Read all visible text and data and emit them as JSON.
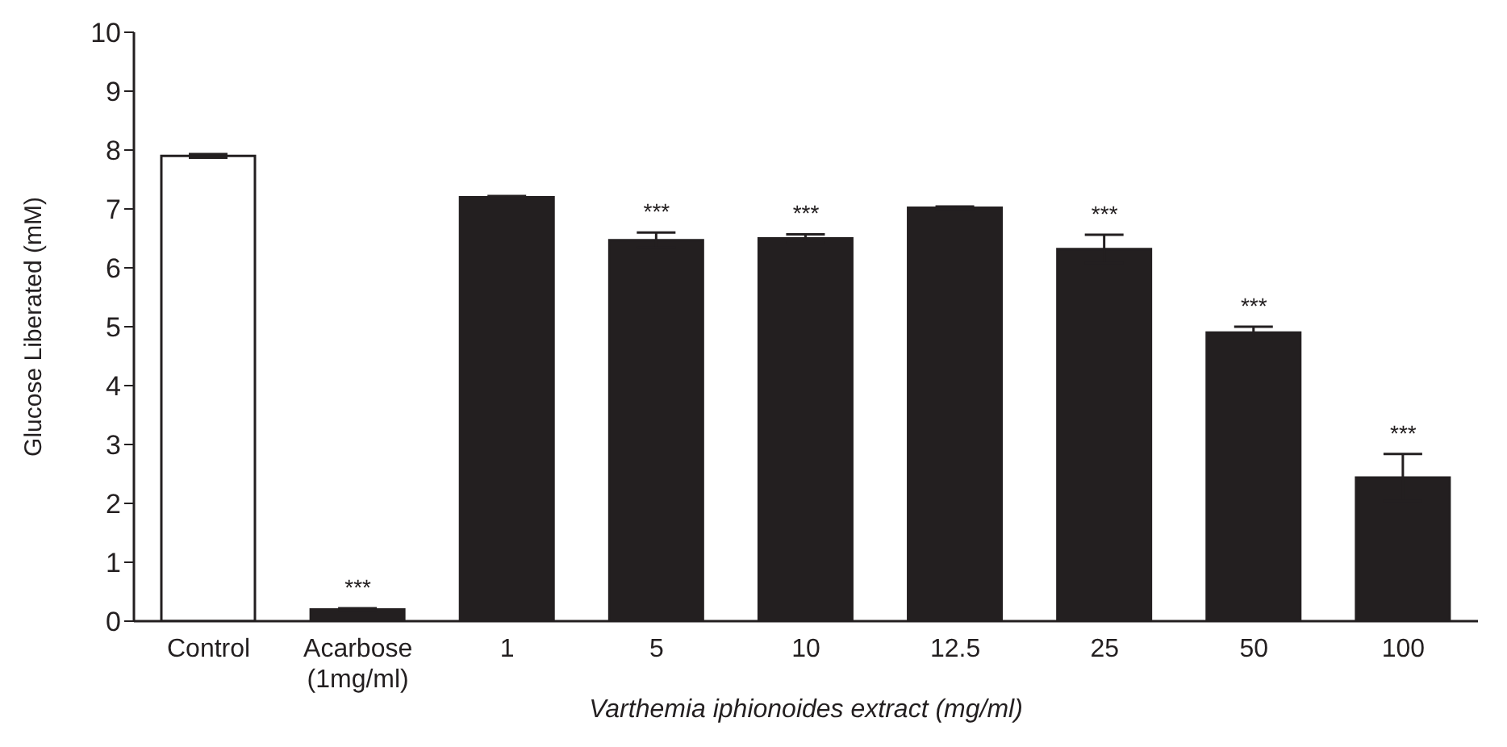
{
  "chart_data": {
    "type": "bar",
    "xlabel": "Varthemia iphionoides extract (mg/ml)",
    "ylabel": "Glucose Liberated (mM)",
    "categories": [
      "Control",
      "Acarbose (1mg/ml)",
      "1",
      "5",
      "10",
      "12.5",
      "25",
      "50",
      "100"
    ],
    "values": [
      7.9,
      0.2,
      7.2,
      6.47,
      6.5,
      7.02,
      6.32,
      4.9,
      2.44
    ],
    "errors": [
      0.03,
      0.02,
      0.02,
      0.13,
      0.07,
      0.02,
      0.24,
      0.1,
      0.4
    ],
    "colors": [
      "#ffffff",
      "#231f20",
      "#231f20",
      "#231f20",
      "#231f20",
      "#231f20",
      "#231f20",
      "#231f20",
      "#231f20"
    ],
    "ylim": [
      0,
      10
    ],
    "yticks": [
      0,
      1,
      2,
      3,
      4,
      5,
      6,
      7,
      8,
      9,
      10
    ],
    "grid": false,
    "legend": false,
    "annotations": [
      {
        "text": "***",
        "x": "Acarbose (1mg/ml)",
        "y": 0.2
      },
      {
        "text": "***",
        "x": "5",
        "y": 6.47
      },
      {
        "text": "***",
        "x": "10",
        "y": 6.5
      },
      {
        "text": "***",
        "x": "25",
        "y": 6.32
      },
      {
        "text": "***",
        "x": "50",
        "y": 4.9
      },
      {
        "text": "***",
        "x": "100",
        "y": 2.44
      }
    ]
  }
}
